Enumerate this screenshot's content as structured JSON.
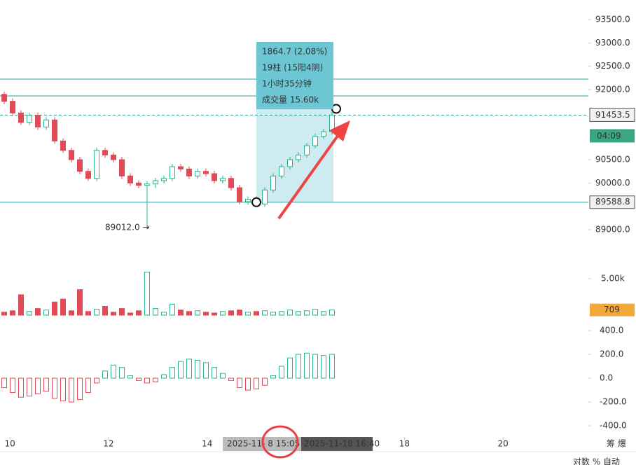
{
  "chart_data": {
    "type": "candlestick",
    "open": [
      91900,
      91750,
      91500,
      91300,
      91450,
      91200,
      91350,
      90900,
      90700,
      90500,
      90250,
      90100,
      90700,
      90600,
      90500,
      90150,
      90000,
      89950,
      89980,
      90050,
      90100,
      90350,
      90300,
      90150,
      90250,
      90200,
      90050,
      90100,
      89900,
      89600,
      89650,
      89550,
      89850,
      90150,
      90350,
      90500,
      90600,
      90800,
      91000,
      91100
    ],
    "high": [
      91960,
      91810,
      91560,
      91510,
      91510,
      91410,
      91410,
      90960,
      90760,
      90560,
      90310,
      90760,
      90760,
      90660,
      90560,
      90210,
      90060,
      90040,
      90110,
      90160,
      90410,
      90410,
      90360,
      90310,
      90310,
      90260,
      90160,
      90160,
      89960,
      89710,
      89710,
      89910,
      90210,
      90410,
      90560,
      90660,
      90860,
      91060,
      91160,
      91520
    ],
    "low": [
      91690,
      91440,
      91240,
      91240,
      91140,
      91140,
      90840,
      90640,
      90440,
      90190,
      90040,
      90040,
      90540,
      90440,
      90090,
      89940,
      89890,
      89012,
      89890,
      89990,
      90040,
      90240,
      90090,
      90090,
      90140,
      89990,
      89990,
      89840,
      89540,
      89540,
      89490,
      89490,
      89790,
      90090,
      90290,
      90440,
      90540,
      90740,
      90940,
      91040
    ],
    "close": [
      91750,
      91500,
      91300,
      91450,
      91200,
      91350,
      90900,
      90700,
      90500,
      90250,
      90100,
      90700,
      90600,
      90500,
      90150,
      90000,
      89950,
      89980,
      90050,
      90100,
      90350,
      90300,
      90150,
      90250,
      90200,
      90050,
      90100,
      89900,
      89600,
      89650,
      89550,
      89850,
      90150,
      90350,
      90500,
      90600,
      90800,
      91000,
      91100,
      91453.5
    ],
    "ylim": [
      88520,
      93920
    ],
    "yticks": [
      {
        "value": 89000,
        "label": "89000.0"
      },
      {
        "value": 90000,
        "label": "90000.0"
      },
      {
        "value": 90500,
        "label": "90500.0"
      },
      {
        "value": 92000,
        "label": "92000.0"
      },
      {
        "value": 92500,
        "label": "92500.0"
      },
      {
        "value": 93000,
        "label": "93000.0"
      },
      {
        "value": 93500,
        "label": "93500.0"
      }
    ],
    "xlim": [
      9.8,
      21.73
    ],
    "xticks": [
      10,
      12,
      14,
      18,
      20
    ],
    "up_color": "#2bb38a",
    "down_color": "#e04b57",
    "hlines": [
      92225,
      91865,
      89588.8
    ],
    "last_price": {
      "value": 91453.5,
      "label": "91453.5"
    },
    "countdown": "04:09",
    "line_tag": {
      "value": 89588.8,
      "label": "89588.8"
    },
    "low_label": "89012.0 →",
    "measure": {
      "from": 89588.8,
      "to": 91453.5,
      "lines": [
        "1864.7 (2.08%)",
        "19柱 (15阳4阴)",
        "1小时35分钟",
        "成交量 15.60k"
      ]
    },
    "volume": {
      "values": [
        400,
        600,
        2800,
        500,
        900,
        700,
        1800,
        2200,
        600,
        3500,
        500,
        800,
        1200,
        400,
        900,
        300,
        600,
        5900,
        900,
        400,
        1500,
        700,
        500,
        600,
        400,
        300,
        500,
        600,
        700,
        400,
        500,
        600,
        400,
        500,
        700,
        500,
        600,
        800,
        500,
        709
      ],
      "ylim": [
        0,
        6730
      ],
      "yticks": [
        {
          "value": 5000,
          "label": "5.00k"
        }
      ],
      "last": 709
    },
    "macd": {
      "values": [
        -80,
        -120,
        -160,
        -150,
        -130,
        -110,
        -170,
        -190,
        -200,
        -180,
        -120,
        -40,
        60,
        110,
        90,
        20,
        -20,
        -40,
        -30,
        30,
        90,
        140,
        160,
        150,
        130,
        90,
        40,
        -20,
        -80,
        -100,
        -90,
        -60,
        20,
        100,
        170,
        200,
        210,
        200,
        190,
        200
      ],
      "ylim": [
        -470,
        470
      ],
      "yticks": [
        {
          "value": 400,
          "label": "400.0"
        },
        {
          "value": 200,
          "label": "200.0"
        },
        {
          "value": 0,
          "label": "0.0"
        },
        {
          "value": -200,
          "label": "-200.0"
        },
        {
          "value": -400,
          "label": "-400.0"
        }
      ]
    },
    "time_labels": [
      "2025-11- 8 15:05",
      "2025-11-18 16:40"
    ],
    "corner": "筹 爆",
    "footer": "对数  %  自动"
  }
}
